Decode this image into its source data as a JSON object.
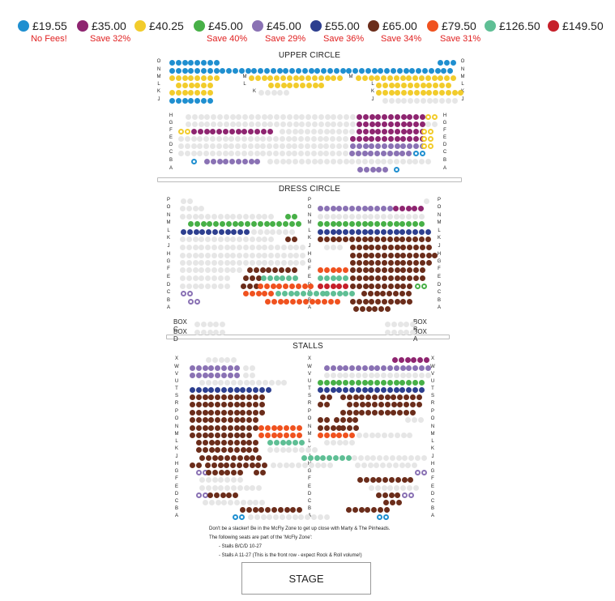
{
  "legend": [
    {
      "price": "£19.55",
      "note": "No Fees!",
      "color": "#1f8fd0"
    },
    {
      "price": "£35.00",
      "note": "Save 32%",
      "color": "#8e2570"
    },
    {
      "price": "£40.25",
      "note": "",
      "color": "#f2cc2c"
    },
    {
      "price": "£45.00",
      "note": "Save 40%",
      "color": "#47b047"
    },
    {
      "price": "£45.00",
      "note": "Save 29%",
      "color": "#8a72b4"
    },
    {
      "price": "£55.00",
      "note": "Save 36%",
      "color": "#2d3f8f"
    },
    {
      "price": "£65.00",
      "note": "Save 34%",
      "color": "#6b2d1b"
    },
    {
      "price": "£79.50",
      "note": "Save 31%",
      "color": "#f0521f"
    },
    {
      "price": "£126.50",
      "note": "",
      "color": "#5fbf95"
    },
    {
      "price": "£149.50",
      "note": "",
      "color": "#c6202a"
    }
  ],
  "sections": {
    "upper": "UPPER CIRCLE",
    "dress": "DRESS CIRCLE",
    "stalls": "STALLS"
  },
  "rows": {
    "upper_top": [
      "O",
      "N",
      "M",
      "L",
      "K",
      "J"
    ],
    "upper_bottom": [
      "H",
      "G",
      "F",
      "E",
      "D",
      "C",
      "B",
      "A"
    ],
    "dress": [
      "P",
      "O",
      "N",
      "M",
      "L",
      "K",
      "J",
      "H",
      "G",
      "F",
      "E",
      "D",
      "C",
      "B",
      "A"
    ],
    "stalls": [
      "X",
      "W",
      "V",
      "U",
      "T",
      "S",
      "R",
      "P",
      "O",
      "N",
      "M",
      "L",
      "K",
      "J",
      "H",
      "G",
      "F",
      "E",
      "D",
      "C",
      "B",
      "A"
    ]
  },
  "boxes": {
    "c": "BOX C",
    "d": "BOX D",
    "b": "BOX B",
    "a": "BOX A"
  },
  "notes": [
    "Don't be a slacker! Be in the McFly Zone to get up close with Marty & The Pinheads.",
    "The following seats are part of the 'McFly Zone':",
    "- Stalls B/C/D 10-27",
    "- Stalls A 11-27 (This is the front row - expect Rock & Roll volume!)"
  ],
  "stage": "STAGE",
  "colors": {
    "unavailable": "#e6e6e6"
  }
}
